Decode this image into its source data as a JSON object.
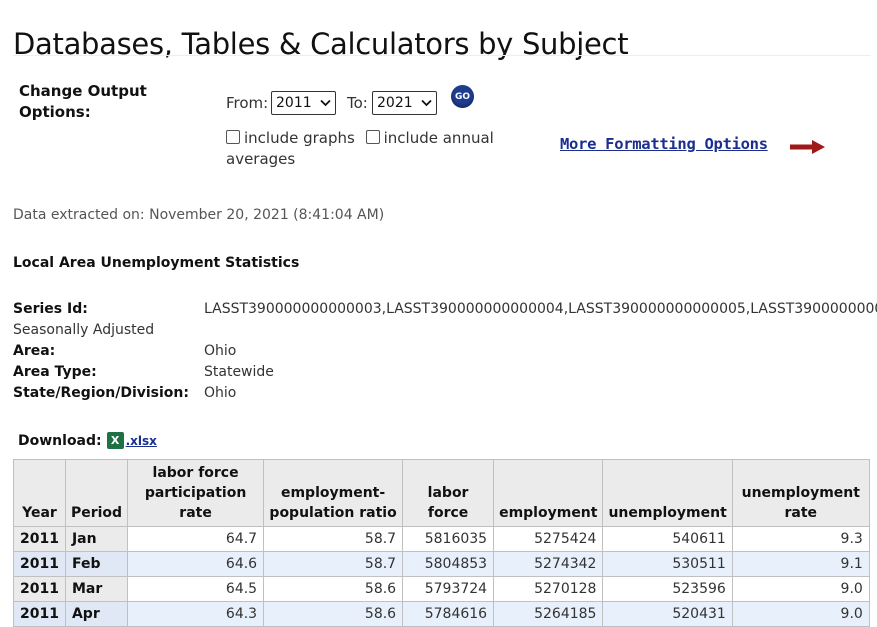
{
  "page": {
    "title": "Databases, Tables & Calculators by Subject"
  },
  "output_options": {
    "label": "Change Output Options:",
    "from_label": "From:",
    "from_value": "2011",
    "to_label": "To:",
    "to_value": "2021",
    "go_label": "GO",
    "include_graphs_label": "include graphs",
    "include_annual_label": "include annual averages",
    "include_graphs_checked": false,
    "include_annual_checked": false,
    "more_formatting_label": "More Formatting Options"
  },
  "extract": {
    "text": "Data extracted on: November 20, 2021 (8:41:04 AM)"
  },
  "survey": {
    "title": "Local Area Unemployment Statistics"
  },
  "meta": {
    "series_id_label": "Series Id:",
    "series_id_value": "LASST390000000000003,LASST390000000000004,LASST390000000000005,LASST3900000000",
    "seasonal": "Seasonally Adjusted",
    "area_label": "Area:",
    "area_value": "Ohio",
    "area_type_label": "Area Type:",
    "area_type_value": "Statewide",
    "state_label": "State/Region/Division:",
    "state_value": "Ohio"
  },
  "download": {
    "label": "Download:",
    "link": ".xlsx",
    "icon": "excel-icon"
  },
  "table": {
    "headers": [
      "Year",
      "Period",
      "labor force participation rate",
      "employment-population ratio",
      "labor force",
      "employment",
      "unemployment",
      "unemployment rate"
    ],
    "rows": [
      [
        "2011",
        "Jan",
        "64.7",
        "58.7",
        "5816035",
        "5275424",
        "540611",
        "9.3"
      ],
      [
        "2011",
        "Feb",
        "64.6",
        "58.7",
        "5804853",
        "5274342",
        "530511",
        "9.1"
      ],
      [
        "2011",
        "Mar",
        "64.5",
        "58.6",
        "5793724",
        "5270128",
        "523596",
        "9.0"
      ],
      [
        "2011",
        "Apr",
        "64.3",
        "58.6",
        "5784616",
        "5264185",
        "520431",
        "9.0"
      ]
    ]
  },
  "colors": {
    "link": "#1a2e8f",
    "arrow": "#a01818",
    "header_bg": "#ebebeb",
    "alt_row": "#e8f0fb"
  }
}
